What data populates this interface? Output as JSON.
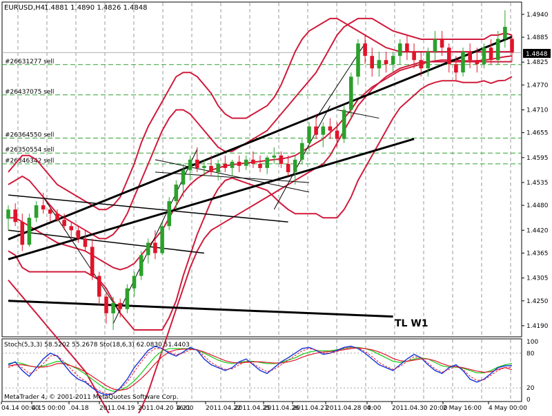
{
  "header": {
    "symbol_tf": "EURUSD,H4",
    "ohlc": "1.4881 1.4890 1.4826 1.4848"
  },
  "price_axis": {
    "ticks": [
      "1.4940",
      "1.4885",
      "1.4825",
      "1.4770",
      "1.4710",
      "1.4655",
      "1.4595",
      "1.4535",
      "1.4480",
      "1.4420",
      "1.4365",
      "1.4305",
      "1.4250",
      "1.4190"
    ],
    "current_price": "1.4848",
    "current_price_color": "#ffffff",
    "current_price_bg": "#000000"
  },
  "orders": [
    {
      "label": "#26631277 sell",
      "price": 1.4819
    },
    {
      "label": "#26437075 sell",
      "price": 1.4746
    },
    {
      "label": "#26364550 sell",
      "price": 1.4642
    },
    {
      "label": "#26350554 sell",
      "price": 1.4606
    },
    {
      "label": "#26346342 sell",
      "price": 1.458
    }
  ],
  "annotations": {
    "trendline_label": "TL W1"
  },
  "oscillator": {
    "label": "Stoch(5,3,3) 58.5202 55.2678  Sto(18,6,3) 62.0830 51.4403",
    "levels": [
      "100",
      "80",
      "20",
      "0"
    ]
  },
  "watermark": "MetaTrader 4, © 2001-2011 MetaQuotes Software Corp.",
  "time_axis": {
    "labels": [
      "04.14 00:00",
      "4.15 00:00",
      ".04.18",
      "2011.04.19",
      "2011.04.20 16:00",
      "4.21",
      "2011.04.22",
      "2011.04.25",
      "2011.04.26",
      "2011.04.27",
      "2011.04.28 00:00",
      "4.",
      "2011.04.30 20:00",
      "2 May 16:00",
      "4 May 00:00"
    ]
  },
  "colors": {
    "bull": "#2ca02c",
    "bear": "#e0142a",
    "bands": "#d01a3a",
    "order_line": "#2aa02a",
    "trendline": "#000000",
    "stoch_main": "#1e3cd8",
    "stoch_signal": "#e0142a",
    "stoch2": "#22cc22"
  },
  "chart_data": {
    "type": "candlestick",
    "title": "EURUSD,H4",
    "ylim": [
      1.4165,
      1.4968
    ],
    "ohlc": [
      [
        1.4448,
        1.448,
        1.442,
        1.447
      ],
      [
        1.447,
        1.4485,
        1.443,
        1.444
      ],
      [
        1.444,
        1.446,
        1.437,
        1.4385
      ],
      [
        1.4385,
        1.446,
        1.438,
        1.445
      ],
      [
        1.445,
        1.449,
        1.444,
        1.448
      ],
      [
        1.448,
        1.451,
        1.446,
        1.447
      ],
      [
        1.447,
        1.448,
        1.444,
        1.446
      ],
      [
        1.446,
        1.447,
        1.444,
        1.4445
      ],
      [
        1.4445,
        1.446,
        1.442,
        1.443
      ],
      [
        1.443,
        1.444,
        1.44,
        1.442
      ],
      [
        1.442,
        1.443,
        1.439,
        1.44
      ],
      [
        1.44,
        1.442,
        1.437,
        1.438
      ],
      [
        1.438,
        1.44,
        1.43,
        1.431
      ],
      [
        1.431,
        1.432,
        1.424,
        1.426
      ],
      [
        1.426,
        1.427,
        1.4195,
        1.422
      ],
      [
        1.422,
        1.426,
        1.418,
        1.4245
      ],
      [
        1.4245,
        1.4255,
        1.421,
        1.423
      ],
      [
        1.423,
        1.429,
        1.422,
        1.428
      ],
      [
        1.428,
        1.432,
        1.426,
        1.431
      ],
      [
        1.431,
        1.437,
        1.43,
        1.436
      ],
      [
        1.436,
        1.44,
        1.434,
        1.439
      ],
      [
        1.439,
        1.442,
        1.435,
        1.4365
      ],
      [
        1.4365,
        1.444,
        1.436,
        1.443
      ],
      [
        1.443,
        1.45,
        1.442,
        1.449
      ],
      [
        1.449,
        1.454,
        1.447,
        1.453
      ],
      [
        1.453,
        1.458,
        1.45,
        1.4565
      ],
      [
        1.4565,
        1.46,
        1.454,
        1.459
      ],
      [
        1.459,
        1.462,
        1.456,
        1.457
      ],
      [
        1.457,
        1.459,
        1.455,
        1.4575
      ],
      [
        1.4575,
        1.46,
        1.455,
        1.456
      ],
      [
        1.456,
        1.459,
        1.454,
        1.458
      ],
      [
        1.458,
        1.46,
        1.456,
        1.457
      ],
      [
        1.457,
        1.459,
        1.455,
        1.4585
      ],
      [
        1.4585,
        1.46,
        1.456,
        1.4575
      ],
      [
        1.4575,
        1.46,
        1.4565,
        1.459
      ],
      [
        1.459,
        1.461,
        1.457,
        1.458
      ],
      [
        1.458,
        1.46,
        1.456,
        1.457
      ],
      [
        1.457,
        1.46,
        1.4555,
        1.4595
      ],
      [
        1.4595,
        1.462,
        1.458,
        1.46
      ],
      [
        1.46,
        1.461,
        1.457,
        1.458
      ],
      [
        1.458,
        1.46,
        1.455,
        1.456
      ],
      [
        1.456,
        1.46,
        1.453,
        1.459
      ],
      [
        1.459,
        1.464,
        1.458,
        1.463
      ],
      [
        1.463,
        1.468,
        1.461,
        1.467
      ],
      [
        1.467,
        1.47,
        1.464,
        1.465
      ],
      [
        1.465,
        1.468,
        1.462,
        1.467
      ],
      [
        1.467,
        1.469,
        1.464,
        1.466
      ],
      [
        1.466,
        1.468,
        1.462,
        1.464
      ],
      [
        1.464,
        1.472,
        1.463,
        1.471
      ],
      [
        1.471,
        1.48,
        1.469,
        1.479
      ],
      [
        1.479,
        1.488,
        1.477,
        1.487
      ],
      [
        1.487,
        1.489,
        1.482,
        1.484
      ],
      [
        1.484,
        1.486,
        1.479,
        1.481
      ],
      [
        1.481,
        1.485,
        1.479,
        1.483
      ],
      [
        1.483,
        1.485,
        1.48,
        1.482
      ],
      [
        1.482,
        1.485,
        1.48,
        1.484
      ],
      [
        1.484,
        1.488,
        1.482,
        1.487
      ],
      [
        1.487,
        1.489,
        1.483,
        1.485
      ],
      [
        1.485,
        1.487,
        1.481,
        1.483
      ],
      [
        1.483,
        1.485,
        1.479,
        1.481
      ],
      [
        1.481,
        1.486,
        1.479,
        1.485
      ],
      [
        1.485,
        1.49,
        1.483,
        1.488
      ],
      [
        1.488,
        1.49,
        1.484,
        1.486
      ],
      [
        1.486,
        1.487,
        1.48,
        1.482
      ],
      [
        1.482,
        1.484,
        1.478,
        1.48
      ],
      [
        1.48,
        1.486,
        1.479,
        1.485
      ],
      [
        1.485,
        1.487,
        1.481,
        1.483
      ],
      [
        1.483,
        1.486,
        1.48,
        1.482
      ],
      [
        1.482,
        1.487,
        1.481,
        1.486
      ],
      [
        1.486,
        1.488,
        1.482,
        1.483
      ],
      [
        1.483,
        1.49,
        1.482,
        1.4881
      ],
      [
        1.4881,
        1.495,
        1.486,
        1.491
      ],
      [
        1.4881,
        1.489,
        1.4826,
        1.4848
      ]
    ],
    "bollinger": {
      "upper": [
        1.453,
        1.454,
        1.455,
        1.454,
        1.452,
        1.45,
        1.448,
        1.446,
        1.445,
        1.444,
        1.443,
        1.442,
        1.441,
        1.44,
        1.44,
        1.441,
        1.443,
        1.446,
        1.45,
        1.454,
        1.458,
        1.462,
        1.466,
        1.469,
        1.471,
        1.471,
        1.47,
        1.468,
        1.466,
        1.464,
        1.462,
        1.461,
        1.461,
        1.462,
        1.463,
        1.464,
        1.465,
        1.466,
        1.468,
        1.47,
        1.472,
        1.474,
        1.476,
        1.478,
        1.48,
        1.483,
        1.486,
        1.489,
        1.491,
        1.492,
        1.493,
        1.493,
        1.493,
        1.492,
        1.491,
        1.49,
        1.4895,
        1.489,
        1.4885,
        1.488,
        1.488,
        1.488,
        1.488,
        1.488,
        1.488,
        1.488,
        1.488,
        1.488,
        1.488,
        1.489,
        1.489,
        1.4895,
        1.489
      ],
      "middle": [
        1.445,
        1.445,
        1.444,
        1.443,
        1.442,
        1.441,
        1.44,
        1.439,
        1.4385,
        1.438,
        1.4375,
        1.437,
        1.436,
        1.435,
        1.434,
        1.433,
        1.4325,
        1.433,
        1.434,
        1.436,
        1.438,
        1.44,
        1.442,
        1.445,
        1.448,
        1.451,
        1.453,
        1.4545,
        1.4555,
        1.4565,
        1.457,
        1.4575,
        1.4578,
        1.458,
        1.4582,
        1.4584,
        1.4586,
        1.4588,
        1.459,
        1.4592,
        1.4595,
        1.46,
        1.461,
        1.462,
        1.463,
        1.464,
        1.4655,
        1.467,
        1.469,
        1.471,
        1.4735,
        1.475,
        1.4765,
        1.4775,
        1.4785,
        1.4795,
        1.4805,
        1.481,
        1.4815,
        1.482,
        1.4825,
        1.4828,
        1.483,
        1.483,
        1.483,
        1.4828,
        1.4828,
        1.4828,
        1.483,
        1.4832,
        1.4835,
        1.4838,
        1.484
      ],
      "lower": [
        1.437,
        1.436,
        1.433,
        1.432,
        1.432,
        1.432,
        1.432,
        1.432,
        1.432,
        1.432,
        1.432,
        1.432,
        1.431,
        1.43,
        1.428,
        1.425,
        1.422,
        1.42,
        1.418,
        1.418,
        1.418,
        1.418,
        1.418,
        1.421,
        1.425,
        1.431,
        1.436,
        1.441,
        1.445,
        1.449,
        1.452,
        1.454,
        1.4546,
        1.454,
        1.4534,
        1.4528,
        1.4522,
        1.4516,
        1.45,
        1.4484,
        1.447,
        1.446,
        1.446,
        1.446,
        1.446,
        1.445,
        1.445,
        1.445,
        1.447,
        1.45,
        1.454,
        1.457,
        1.46,
        1.463,
        1.466,
        1.469,
        1.4715,
        1.473,
        1.4745,
        1.476,
        1.477,
        1.4776,
        1.478,
        1.478,
        1.478,
        1.4776,
        1.4776,
        1.4776,
        1.478,
        1.4774,
        1.478,
        1.4781,
        1.479
      ]
    },
    "bollinger_outer": {
      "upper": [
        1.456,
        1.458,
        1.46,
        1.46,
        1.459,
        1.457,
        1.455,
        1.453,
        1.452,
        1.451,
        1.45,
        1.449,
        1.448,
        1.447,
        1.447,
        1.448,
        1.45,
        1.454,
        1.458,
        1.463,
        1.467,
        1.47,
        1.473,
        1.476,
        1.479,
        1.48,
        1.48,
        1.479,
        1.477,
        1.475,
        1.472,
        1.47,
        1.469,
        1.469,
        1.469,
        1.47,
        1.471,
        1.472,
        1.474,
        1.477,
        1.481,
        1.485,
        1.488,
        1.49,
        1.491,
        1.492,
        1.493,
        1.493,
        1.492,
        1.491,
        1.49,
        1.489,
        1.488,
        1.487,
        1.486,
        1.4855,
        1.485,
        1.485,
        1.485,
        1.485,
        1.485,
        1.485,
        1.485,
        1.485,
        1.485,
        1.485,
        1.485,
        1.485,
        1.485,
        1.485,
        1.485,
        1.485,
        1.485
      ],
      "lower": [
        1.43,
        1.428,
        1.426,
        1.424,
        1.422,
        1.42,
        1.418,
        1.416,
        1.414,
        1.412,
        1.41,
        1.408,
        1.405,
        1.402,
        1.399,
        1.396,
        1.394,
        1.394,
        1.396,
        1.399,
        1.403,
        1.408,
        1.413,
        1.418,
        1.423,
        1.428,
        1.433,
        1.437,
        1.44,
        1.442,
        1.443,
        1.444,
        1.445,
        1.446,
        1.447,
        1.448,
        1.449,
        1.45,
        1.451,
        1.452,
        1.453,
        1.454,
        1.455,
        1.456,
        1.457,
        1.458,
        1.46,
        1.463,
        1.466,
        1.469,
        1.472,
        1.474,
        1.476,
        1.4775,
        1.479,
        1.48,
        1.481,
        1.4815,
        1.482,
        1.4825,
        1.4826,
        1.4826,
        1.4826,
        1.4826,
        1.4826,
        1.4826,
        1.4826,
        1.4826,
        1.4826,
        1.4826,
        1.4826,
        1.4826,
        1.4826
      ]
    },
    "stochastic": {
      "range": [
        0,
        100
      ],
      "stoch_5_3_3_main": [
        60,
        65,
        50,
        40,
        55,
        70,
        80,
        75,
        60,
        45,
        35,
        30,
        20,
        12,
        8,
        10,
        20,
        35,
        55,
        70,
        85,
        92,
        88,
        80,
        75,
        82,
        90,
        85,
        70,
        60,
        55,
        50,
        55,
        65,
        70,
        60,
        50,
        45,
        55,
        65,
        72,
        80,
        88,
        90,
        85,
        78,
        80,
        85,
        90,
        92,
        88,
        80,
        70,
        60,
        55,
        50,
        60,
        70,
        78,
        72,
        60,
        50,
        45,
        55,
        60,
        50,
        35,
        30,
        35,
        45,
        55,
        58,
        58.5
      ],
      "stoch_5_3_3_signal": [
        55,
        60,
        55,
        45,
        50,
        62,
        75,
        76,
        65,
        52,
        40,
        32,
        22,
        15,
        10,
        10,
        18,
        30,
        48,
        65,
        80,
        88,
        88,
        82,
        77,
        80,
        86,
        86,
        75,
        64,
        57,
        52,
        53,
        60,
        66,
        62,
        54,
        48,
        52,
        60,
        68,
        76,
        84,
        88,
        86,
        80,
        80,
        83,
        88,
        90,
        89,
        83,
        74,
        64,
        57,
        52,
        57,
        66,
        74,
        72,
        63,
        53,
        47,
        52,
        57,
        52,
        40,
        33,
        34,
        42,
        50,
        55,
        55.3
      ],
      "sto_18_6_3_main": [
        62,
        64,
        62,
        58,
        56,
        58,
        62,
        66,
        64,
        58,
        52,
        44,
        35,
        26,
        18,
        14,
        16,
        22,
        32,
        45,
        60,
        74,
        84,
        88,
        88,
        88,
        88,
        86,
        80,
        74,
        68,
        64,
        62,
        64,
        66,
        66,
        64,
        62,
        62,
        64,
        68,
        72,
        78,
        82,
        84,
        84,
        84,
        86,
        88,
        90,
        90,
        88,
        84,
        78,
        72,
        66,
        64,
        66,
        70,
        72,
        70,
        64,
        58,
        56,
        56,
        54,
        50,
        46,
        46,
        50,
        56,
        60,
        62.1
      ],
      "sto_18_6_3_signal": [
        58,
        60,
        60,
        58,
        56,
        56,
        58,
        62,
        62,
        58,
        54,
        48,
        40,
        32,
        24,
        18,
        16,
        18,
        26,
        36,
        48,
        62,
        74,
        82,
        86,
        87,
        87,
        86,
        82,
        77,
        72,
        67,
        64,
        63,
        64,
        65,
        65,
        64,
        63,
        63,
        65,
        68,
        73,
        77,
        80,
        82,
        83,
        84,
        86,
        88,
        89,
        88,
        86,
        82,
        77,
        71,
        67,
        66,
        68,
        70,
        70,
        67,
        62,
        58,
        57,
        55,
        52,
        49,
        47,
        48,
        52,
        55,
        51.4
      ]
    }
  }
}
